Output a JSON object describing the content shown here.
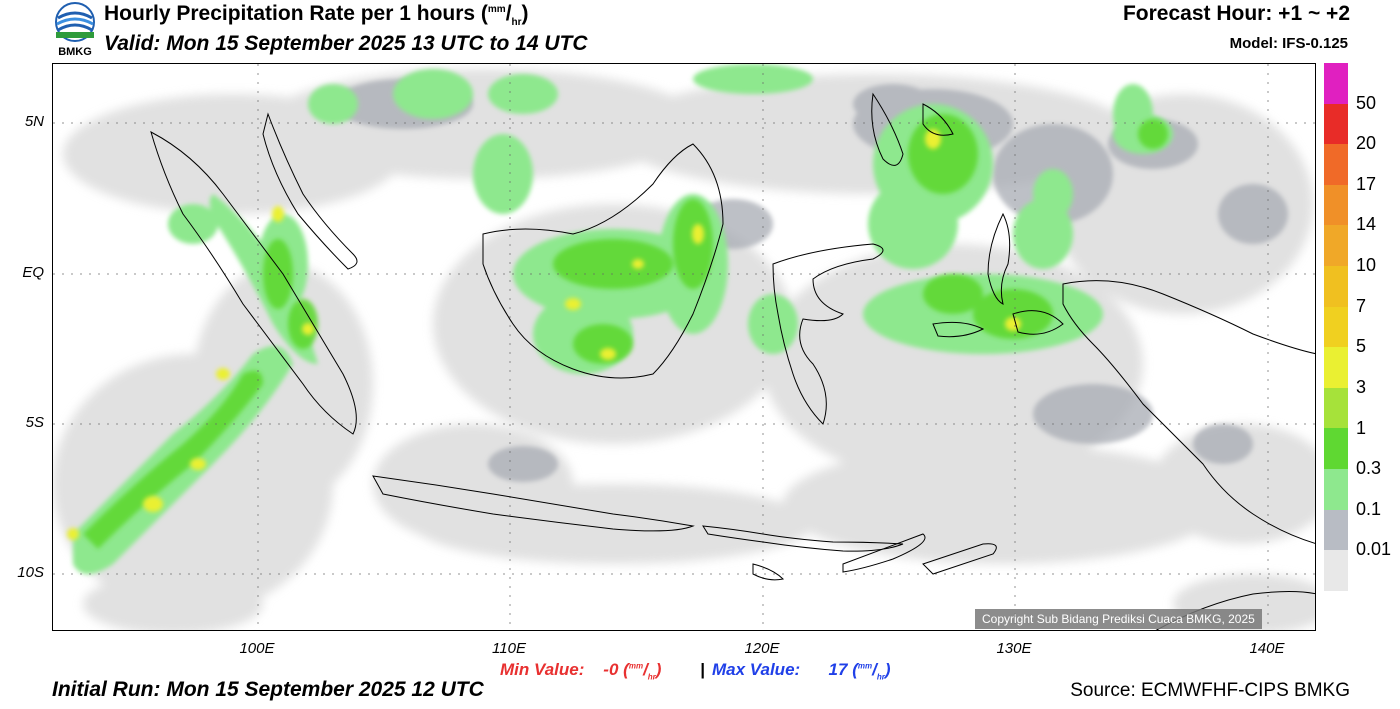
{
  "header": {
    "title_main": "Hourly Precipitation Rate per 1 hours (",
    "title_unit_top": "mm",
    "title_unit_sep": "/",
    "title_unit_bottom": "hr",
    "title_close": ")",
    "valid": "Valid: Mon 15 September 2025 13 UTC to 14 UTC",
    "forecast_hour": "Forecast Hour: +1 ~ +2",
    "model": "Model: IFS-0.125"
  },
  "logo": {
    "name": "bmkg-logo",
    "text": "BMKG"
  },
  "map": {
    "lat_labels": [
      "5N",
      "EQ",
      "5S",
      "10S"
    ],
    "lon_labels": [
      "100E",
      "110E",
      "120E",
      "130E",
      "140E"
    ],
    "copyright": "Copyright Sub Bidang Prediksi Cuaca BMKG, 2025"
  },
  "legend": {
    "colors": [
      "#e8e8e8",
      "#b8bcc4",
      "#8ee88e",
      "#5fd832",
      "#a6e23a",
      "#eaf032",
      "#f0d020",
      "#f0c020",
      "#f0a828",
      "#f09028",
      "#f06a28",
      "#e82c28",
      "#e020c0"
    ],
    "labels": [
      "0.01",
      "0.1",
      "0.3",
      "1",
      "3",
      "5",
      "7",
      "10",
      "14",
      "17",
      "20",
      "50"
    ]
  },
  "stats": {
    "min_label": "Min Value:",
    "min_value": "-0",
    "max_label": "Max Value:",
    "max_value": "17",
    "unit_top": "mm",
    "unit_sep": "/",
    "unit_bottom": "hr",
    "separator": "|",
    "min_color": "#e83030",
    "max_color": "#2040e8"
  },
  "footer": {
    "initial_run": "Initial Run: Mon 15 September 2025 12 UTC",
    "source": "Source: ECMWFHF-CIPS BMKG"
  }
}
